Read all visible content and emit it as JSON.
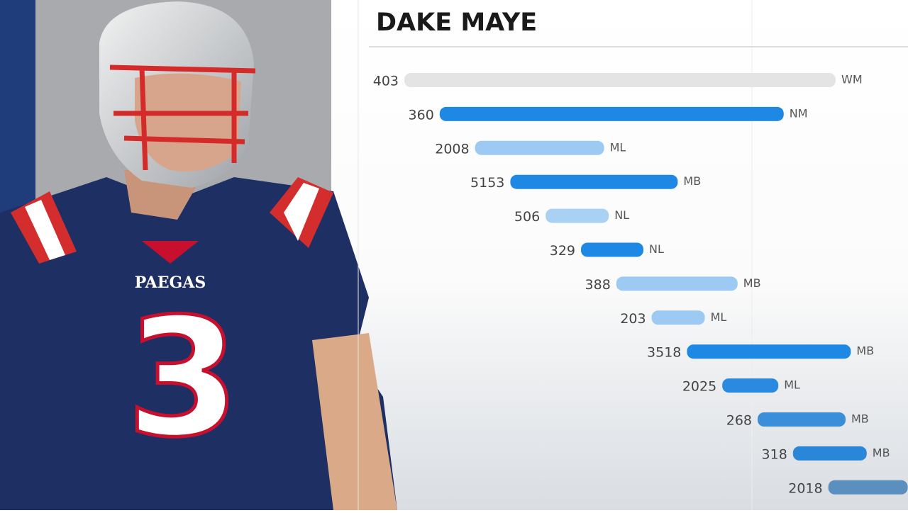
{
  "player": {
    "jersey_number": "3",
    "jersey_lettering": "PAEGAS"
  },
  "chart_data": {
    "type": "bar",
    "orientation": "horizontal",
    "title": "DAKE MAYE",
    "categories": [
      "403",
      "360",
      "2008",
      "5153",
      "506",
      "329",
      "388",
      "203",
      "3518",
      "2025",
      "268",
      "318",
      "2018"
    ],
    "values": [
      608,
      485,
      182,
      236,
      89,
      88,
      171,
      75,
      231,
      79,
      124,
      104,
      112
    ],
    "end_labels": [
      "WM",
      "NM",
      "ML",
      "MB",
      "NL",
      "NL",
      "MB",
      "ML",
      "MB",
      "ML",
      "MB",
      "MB",
      null
    ],
    "colors": [
      "#e4e4e4",
      "#1e88e5",
      "#9ccaf2",
      "#1e88e5",
      "#a9d1f4",
      "#1e88e5",
      "#9ccaf2",
      "#9ccaf2",
      "#1e88e5",
      "#2a8ae0",
      "#3a8fd8",
      "#2a86d8",
      "#5a8fc0"
    ]
  }
}
